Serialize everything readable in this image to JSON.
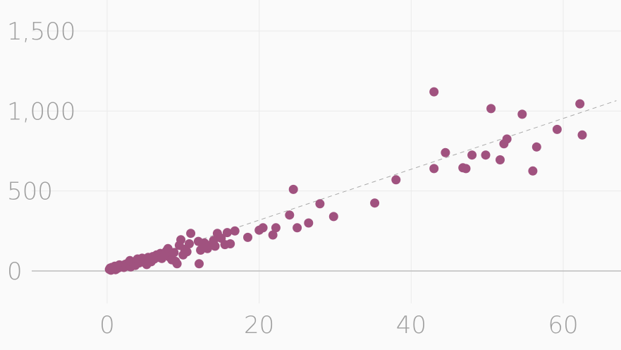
{
  "chart_data": {
    "type": "scatter",
    "title": "",
    "xlabel": "",
    "ylabel": "",
    "xlim": [
      -10,
      67
    ],
    "ylim": [
      -220,
      1620
    ],
    "x_ticks": [
      0,
      20,
      40,
      60
    ],
    "x_tick_labels": [
      "0",
      "20",
      "40",
      "60"
    ],
    "y_ticks": [
      0,
      500,
      1000,
      1500
    ],
    "y_tick_labels": [
      "0",
      "500",
      "1,000",
      "1,500"
    ],
    "grid": true,
    "legend": "none",
    "colors": {
      "point": "#a0527f",
      "background": "#fafafa",
      "tick_label": "#9e9e9e",
      "grid": "#ebebeb",
      "zero_line": "#bdbdbd",
      "trend": "#aaaaaa"
    },
    "trend_line": {
      "x": [
        0,
        67
      ],
      "y": [
        0,
        1065
      ]
    },
    "series": [
      {
        "points": [
          [
            0.3,
            10
          ],
          [
            0.4,
            18
          ],
          [
            0.5,
            5
          ],
          [
            0.6,
            22
          ],
          [
            0.8,
            12
          ],
          [
            1.0,
            30
          ],
          [
            1.1,
            8
          ],
          [
            1.2,
            25
          ],
          [
            1.3,
            15
          ],
          [
            1.5,
            20
          ],
          [
            1.6,
            38
          ],
          [
            1.8,
            28
          ],
          [
            2.0,
            35
          ],
          [
            2.2,
            22
          ],
          [
            2.4,
            42
          ],
          [
            2.5,
            30
          ],
          [
            2.7,
            48
          ],
          [
            2.9,
            40
          ],
          [
            3.0,
            65
          ],
          [
            3.1,
            25
          ],
          [
            3.3,
            55
          ],
          [
            3.5,
            45
          ],
          [
            3.7,
            35
          ],
          [
            3.9,
            60
          ],
          [
            4.0,
            75
          ],
          [
            4.2,
            50
          ],
          [
            4.4,
            68
          ],
          [
            4.6,
            80
          ],
          [
            4.8,
            55
          ],
          [
            5.0,
            72
          ],
          [
            5.2,
            40
          ],
          [
            5.4,
            85
          ],
          [
            5.6,
            65
          ],
          [
            5.8,
            58
          ],
          [
            6.0,
            90
          ],
          [
            6.2,
            75
          ],
          [
            6.5,
            100
          ],
          [
            6.8,
            85
          ],
          [
            7.0,
            110
          ],
          [
            7.2,
            78
          ],
          [
            7.5,
            95
          ],
          [
            7.8,
            125
          ],
          [
            8.0,
            140
          ],
          [
            8.2,
            88
          ],
          [
            8.5,
            70
          ],
          [
            8.8,
            115
          ],
          [
            9.0,
            60
          ],
          [
            9.2,
            45
          ],
          [
            9.5,
            160
          ],
          [
            9.7,
            195
          ],
          [
            10.0,
            100
          ],
          [
            10.2,
            135
          ],
          [
            10.5,
            120
          ],
          [
            10.8,
            170
          ],
          [
            11.0,
            235
          ],
          [
            12.0,
            185
          ],
          [
            12.1,
            45
          ],
          [
            12.3,
            130
          ],
          [
            12.6,
            155
          ],
          [
            12.8,
            175
          ],
          [
            13.2,
            140
          ],
          [
            13.5,
            160
          ],
          [
            14.0,
            190
          ],
          [
            14.2,
            155
          ],
          [
            14.5,
            235
          ],
          [
            15.0,
            205
          ],
          [
            15.5,
            165
          ],
          [
            15.8,
            240
          ],
          [
            16.2,
            170
          ],
          [
            16.8,
            250
          ],
          [
            18.5,
            210
          ],
          [
            20.0,
            255
          ],
          [
            20.5,
            270
          ],
          [
            21.8,
            225
          ],
          [
            22.2,
            270
          ],
          [
            24.0,
            350
          ],
          [
            24.5,
            510
          ],
          [
            25.0,
            270
          ],
          [
            26.5,
            300
          ],
          [
            28.0,
            420
          ],
          [
            29.8,
            340
          ],
          [
            35.2,
            425
          ],
          [
            38.0,
            570
          ],
          [
            43.0,
            1120
          ],
          [
            43.0,
            640
          ],
          [
            44.5,
            740
          ],
          [
            46.8,
            645
          ],
          [
            47.2,
            640
          ],
          [
            48.0,
            725
          ],
          [
            49.8,
            725
          ],
          [
            50.5,
            1015
          ],
          [
            51.7,
            695
          ],
          [
            52.2,
            795
          ],
          [
            52.6,
            825
          ],
          [
            54.6,
            980
          ],
          [
            56.0,
            625
          ],
          [
            56.5,
            775
          ],
          [
            59.2,
            885
          ],
          [
            62.2,
            1045
          ],
          [
            62.5,
            850
          ]
        ]
      }
    ]
  }
}
